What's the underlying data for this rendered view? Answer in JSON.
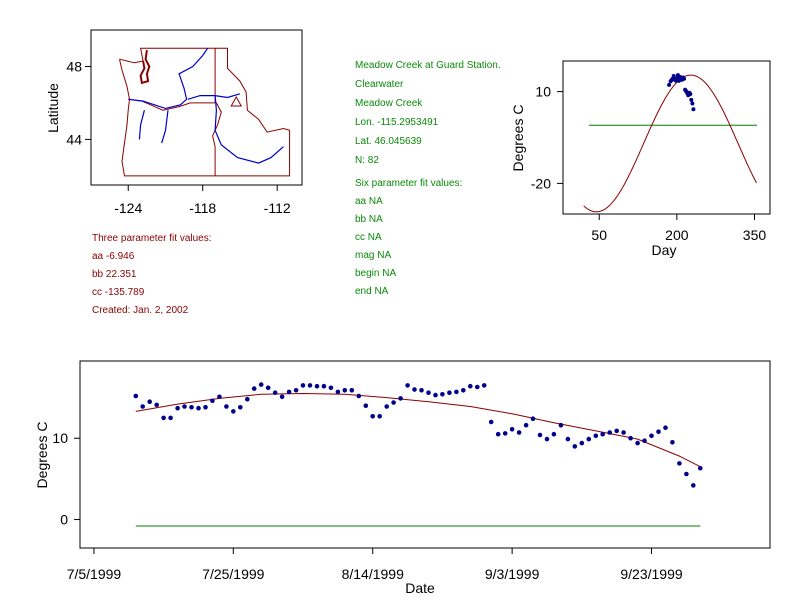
{
  "colors": {
    "fit_curve": "#8b0000",
    "points": "#00008b",
    "reference_line": "#008000",
    "rivers": "#0000cd",
    "map_borders": "#8b0000",
    "green_text": "#0a8a0a",
    "red_text": "#8b0000"
  },
  "station_info": {
    "lines": [
      "Meadow Creek at Guard Station.",
      "Clearwater",
      "Meadow Creek",
      "Lon. -115.2953491",
      "Lat. 46.045639",
      "N: 82"
    ]
  },
  "six_param": {
    "lines": [
      "Six parameter fit values:",
      "aa NA",
      "bb NA",
      "cc NA",
      "mag NA",
      "begin NA",
      "end NA"
    ]
  },
  "three_param": {
    "lines": [
      "Three parameter fit values:",
      "aa -6.946",
      "bb 22.351",
      "cc -135.789",
      "Created:   Jan. 2, 2002"
    ]
  },
  "chart_data": [
    {
      "type": "map",
      "ylabel": "Latitude",
      "x_ticks": [
        "-124",
        "-118",
        "-112"
      ],
      "y_ticks": [
        "48",
        "44"
      ],
      "x_tick_values": [
        -124,
        -118,
        -112
      ],
      "y_tick_values": [
        48,
        44
      ],
      "xlim": [
        -127,
        -110
      ],
      "ylim": [
        41.5,
        50
      ],
      "station_marker": {
        "lon": -115.3,
        "lat": 46.05,
        "symbol": "triangle"
      }
    },
    {
      "type": "scatter",
      "xlabel": "Day",
      "ylabel": "Degrees C",
      "x_ticks": [
        "50",
        "200",
        "350"
      ],
      "x_tick_values": [
        50,
        200,
        350
      ],
      "y_ticks": [
        "10",
        "-20"
      ],
      "y_tick_values": [
        10,
        -20
      ],
      "xlim": [
        -20,
        380
      ],
      "ylim": [
        -30,
        20
      ],
      "fit_curve": {
        "aa": -6.946,
        "bb": 22.351,
        "cc": -135.789,
        "x_range": [
          20,
          355
        ]
      },
      "reference_line": {
        "y": -1,
        "x_range": [
          30,
          355
        ]
      },
      "points": [
        [
          185,
          12.2
        ],
        [
          188,
          13.4
        ],
        [
          190,
          13.8
        ],
        [
          192,
          14.2
        ],
        [
          194,
          15.1
        ],
        [
          196,
          14.0
        ],
        [
          198,
          13.6
        ],
        [
          200,
          14.3
        ],
        [
          202,
          15.4
        ],
        [
          204,
          13.5
        ],
        [
          206,
          14.8
        ],
        [
          208,
          14.1
        ],
        [
          210,
          13.9
        ],
        [
          212,
          14.6
        ],
        [
          214,
          14.2
        ],
        [
          216,
          10.6
        ],
        [
          218,
          10.1
        ],
        [
          220,
          9.5
        ],
        [
          222,
          8.8
        ],
        [
          224,
          9.6
        ],
        [
          226,
          9.2
        ],
        [
          228,
          7.3
        ],
        [
          230,
          6.1
        ],
        [
          232,
          4.2
        ]
      ]
    },
    {
      "type": "scatter",
      "xlabel": "Date",
      "ylabel": "Degrees C",
      "x_ticks": [
        "7/5/1999",
        "7/25/1999",
        "8/14/1999",
        "9/3/1999",
        "9/23/1999"
      ],
      "x_tick_values": [
        0,
        20,
        40,
        60,
        80
      ],
      "y_ticks": [
        "10",
        "0"
      ],
      "y_tick_values": [
        10,
        0
      ],
      "xlim": [
        -2,
        97
      ],
      "ylim": [
        -3.5,
        19.5
      ],
      "reference_line": {
        "y": -0.8,
        "x_range": [
          6,
          87
        ]
      },
      "fit_curve": [
        [
          6,
          13.3
        ],
        [
          12,
          14.2
        ],
        [
          18,
          14.9
        ],
        [
          24,
          15.4
        ],
        [
          30,
          15.5
        ],
        [
          36,
          15.4
        ],
        [
          42,
          15.0
        ],
        [
          48,
          14.5
        ],
        [
          54,
          13.9
        ],
        [
          60,
          13.0
        ],
        [
          66,
          11.9
        ],
        [
          72,
          10.9
        ],
        [
          78,
          9.9
        ],
        [
          84,
          7.8
        ],
        [
          87,
          6.5
        ]
      ],
      "points": [
        [
          6,
          15.2
        ],
        [
          7,
          13.9
        ],
        [
          8,
          14.5
        ],
        [
          9,
          14.1
        ],
        [
          10,
          12.5
        ],
        [
          11,
          12.5
        ],
        [
          12,
          13.7
        ],
        [
          13,
          13.9
        ],
        [
          14,
          13.8
        ],
        [
          15,
          13.7
        ],
        [
          16,
          13.8
        ],
        [
          17,
          14.6
        ],
        [
          18,
          15.1
        ],
        [
          19,
          13.9
        ],
        [
          20,
          13.3
        ],
        [
          21,
          13.8
        ],
        [
          22,
          14.8
        ],
        [
          23,
          16.1
        ],
        [
          24,
          16.6
        ],
        [
          25,
          16.2
        ],
        [
          26,
          15.6
        ],
        [
          27,
          15.1
        ],
        [
          28,
          15.7
        ],
        [
          29,
          15.9
        ],
        [
          30,
          16.5
        ],
        [
          31,
          16.5
        ],
        [
          32,
          16.4
        ],
        [
          33,
          16.4
        ],
        [
          34,
          16.2
        ],
        [
          35,
          15.7
        ],
        [
          36,
          15.9
        ],
        [
          37,
          15.9
        ],
        [
          38,
          15.2
        ],
        [
          39,
          14.0
        ],
        [
          40,
          12.7
        ],
        [
          41,
          12.7
        ],
        [
          42,
          13.9
        ],
        [
          43,
          14.4
        ],
        [
          44,
          14.9
        ],
        [
          45,
          16.5
        ],
        [
          46,
          16.0
        ],
        [
          47,
          15.9
        ],
        [
          48,
          15.6
        ],
        [
          49,
          15.3
        ],
        [
          50,
          15.4
        ],
        [
          51,
          15.6
        ],
        [
          52,
          15.7
        ],
        [
          53,
          15.9
        ],
        [
          54,
          16.4
        ],
        [
          55,
          16.3
        ],
        [
          56,
          16.5
        ],
        [
          57,
          12.0
        ],
        [
          58,
          10.5
        ],
        [
          59,
          10.6
        ],
        [
          60,
          11.1
        ],
        [
          61,
          10.7
        ],
        [
          62,
          11.6
        ],
        [
          63,
          12.4
        ],
        [
          64,
          10.4
        ],
        [
          65,
          9.9
        ],
        [
          66,
          10.5
        ],
        [
          67,
          11.6
        ],
        [
          68,
          9.9
        ],
        [
          69,
          9.0
        ],
        [
          70,
          9.4
        ],
        [
          71,
          9.9
        ],
        [
          72,
          10.3
        ],
        [
          73,
          10.5
        ],
        [
          74,
          10.7
        ],
        [
          75,
          10.9
        ],
        [
          76,
          10.7
        ],
        [
          77,
          10.0
        ],
        [
          78,
          9.4
        ],
        [
          79,
          9.7
        ],
        [
          80,
          10.3
        ],
        [
          81,
          10.8
        ],
        [
          82,
          11.3
        ],
        [
          83,
          9.5
        ],
        [
          84,
          6.9
        ],
        [
          85,
          5.6
        ],
        [
          86,
          4.2
        ],
        [
          87,
          6.3
        ]
      ]
    }
  ]
}
